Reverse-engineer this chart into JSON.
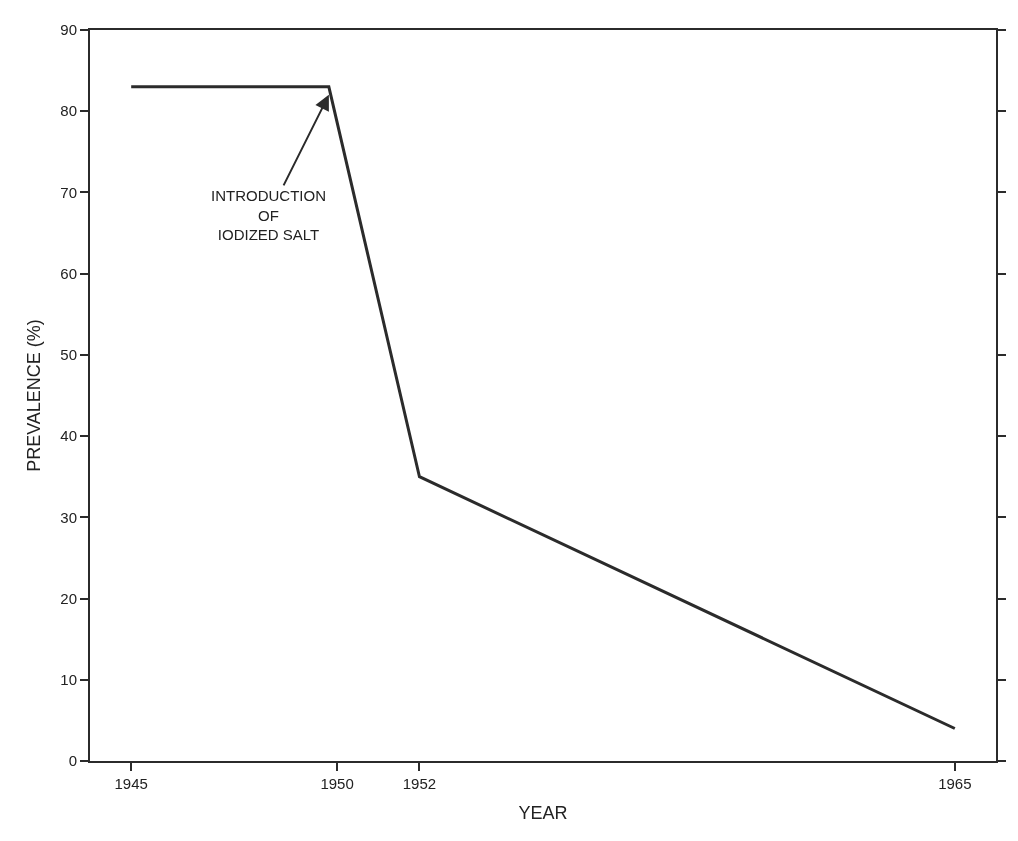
{
  "chart_data": {
    "type": "line",
    "xlabel": "YEAR",
    "ylabel": "PREVALENCE (%)",
    "x": [
      1945,
      1949.8,
      1952,
      1965
    ],
    "series": [
      {
        "color": "#2b2b2b",
        "values": [
          83,
          83,
          35,
          4
        ]
      }
    ],
    "xlim": [
      1944,
      1966
    ],
    "xticks": [
      1945,
      1950,
      1952,
      1965
    ],
    "ylim": [
      0,
      90
    ],
    "yticks": [
      0,
      10,
      20,
      30,
      40,
      50,
      60,
      70,
      80,
      90
    ],
    "marker": "none",
    "line_style": "solid",
    "annotations": [
      {
        "text": "INTRODUCTION\nOF\nIODIZED SALT",
        "x": 1949.8,
        "y": 83
      }
    ]
  }
}
